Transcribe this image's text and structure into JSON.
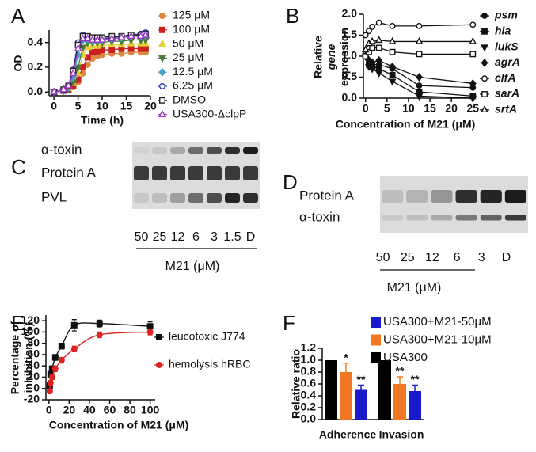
{
  "chart_data": [
    {
      "type": "line",
      "panel": "A",
      "xlabel": "Time (h)",
      "ylabel": "OD",
      "x": [
        0,
        2,
        3,
        4,
        5,
        6,
        7,
        8,
        9,
        10,
        12,
        14,
        16,
        18,
        19
      ],
      "xlim": [
        -1,
        20
      ],
      "xticks": [
        0,
        5,
        10,
        15,
        20
      ],
      "ylim": [
        -0.03,
        0.5
      ],
      "yticks": [
        {
          "value": 0,
          "label": "0.0"
        },
        {
          "value": 0.2,
          "label": "0.2"
        },
        {
          "value": 0.4,
          "label": "0.4"
        }
      ],
      "series": [
        {
          "name": "125 μM",
          "color": "#d9883f",
          "marker": "circle",
          "open": false,
          "values": [
            0,
            0.01,
            0.02,
            0.04,
            0.08,
            0.15,
            0.22,
            0.27,
            0.29,
            0.3,
            0.31,
            0.31,
            0.32,
            0.32,
            0.32
          ]
        },
        {
          "name": "100 μM",
          "color": "#cc2020",
          "marker": "square",
          "open": false,
          "values": [
            0,
            0.01,
            0.02,
            0.05,
            0.1,
            0.2,
            0.28,
            0.32,
            0.33,
            0.34,
            0.34,
            0.35,
            0.35,
            0.35,
            0.35
          ]
        },
        {
          "name": "50 μM",
          "color": "#e0cf3a",
          "marker": "triangle",
          "open": false,
          "values": [
            0,
            0.01,
            0.03,
            0.07,
            0.15,
            0.3,
            0.36,
            0.37,
            0.37,
            0.38,
            0.38,
            0.38,
            0.39,
            0.39,
            0.39
          ]
        },
        {
          "name": "25 μM",
          "color": "#4a7a3a",
          "marker": "triangle-down",
          "open": false,
          "values": [
            0,
            0.01,
            0.03,
            0.08,
            0.2,
            0.36,
            0.4,
            0.4,
            0.4,
            0.4,
            0.41,
            0.41,
            0.42,
            0.42,
            0.42
          ]
        },
        {
          "name": "12.5 μM",
          "color": "#4aa3c8",
          "marker": "diamond",
          "open": false,
          "values": [
            0,
            0.01,
            0.04,
            0.12,
            0.3,
            0.42,
            0.43,
            0.42,
            0.42,
            0.42,
            0.43,
            0.44,
            0.45,
            0.45,
            0.46
          ]
        },
        {
          "name": "6.25 μM",
          "color": "#2233bb",
          "marker": "circle",
          "open": true,
          "values": [
            0,
            0.02,
            0.05,
            0.18,
            0.4,
            0.46,
            0.45,
            0.43,
            0.43,
            0.43,
            0.44,
            0.45,
            0.46,
            0.47,
            0.48
          ]
        },
        {
          "name": "DMSO",
          "color": "#222222",
          "marker": "square",
          "open": true,
          "values": [
            0,
            0.02,
            0.05,
            0.17,
            0.38,
            0.45,
            0.45,
            0.44,
            0.44,
            0.44,
            0.45,
            0.45,
            0.46,
            0.46,
            0.47
          ]
        },
        {
          "name": "USA300-ΔclpP",
          "color": "#9933cc",
          "marker": "triangle",
          "open": true,
          "values": [
            0,
            0.02,
            0.05,
            0.15,
            0.35,
            0.43,
            0.43,
            0.42,
            0.42,
            0.42,
            0.43,
            0.44,
            0.45,
            0.45,
            0.46
          ]
        }
      ]
    },
    {
      "type": "line",
      "panel": "B",
      "xlabel": "Concentration of M21 (μM)",
      "ylabel": [
        "Relative",
        "gene",
        "expression"
      ],
      "ylabel_italic": [
        false,
        true,
        false
      ],
      "x": [
        0,
        0.78,
        1.56,
        3.125,
        6.25,
        12.5,
        25
      ],
      "xlim": [
        -0.5,
        25.5
      ],
      "xticks": [
        0,
        5,
        10,
        15,
        20,
        25
      ],
      "ylim": [
        0,
        2.0
      ],
      "yticks": [
        {
          "value": 0,
          "label": "0.0"
        },
        {
          "value": 0.5,
          "label": "0.5"
        },
        {
          "value": 1,
          "label": "1.0"
        },
        {
          "value": 1.5,
          "label": "1.5"
        },
        {
          "value": 2,
          "label": "2.0"
        }
      ],
      "series": [
        {
          "name": "psm",
          "color": "#111111",
          "marker": "circle",
          "open": false,
          "values": [
            1.0,
            0.85,
            0.8,
            0.8,
            0.7,
            0.3,
            0.25
          ]
        },
        {
          "name": "hla",
          "color": "#111111",
          "marker": "square",
          "open": false,
          "values": [
            1.0,
            0.8,
            0.75,
            0.7,
            0.55,
            0.15,
            0.05
          ]
        },
        {
          "name": "lukS",
          "color": "#111111",
          "marker": "triangle-down",
          "open": false,
          "values": [
            1.0,
            0.75,
            0.7,
            0.6,
            0.4,
            0.05,
            0.0
          ]
        },
        {
          "name": "agrA",
          "color": "#111111",
          "marker": "diamond",
          "open": false,
          "values": [
            1.0,
            0.9,
            0.85,
            0.9,
            0.75,
            0.5,
            0.35
          ]
        },
        {
          "name": "clfA",
          "color": "#111111",
          "marker": "circle",
          "open": true,
          "values": [
            1.5,
            1.6,
            1.7,
            1.8,
            1.72,
            1.72,
            1.75
          ]
        },
        {
          "name": "sarA",
          "color": "#111111",
          "marker": "square",
          "open": true,
          "values": [
            1.0,
            1.1,
            1.2,
            1.2,
            1.1,
            1.05,
            1.05
          ]
        },
        {
          "name": "srtA",
          "color": "#111111",
          "marker": "triangle",
          "open": true,
          "values": [
            1.15,
            1.3,
            1.35,
            1.38,
            1.35,
            1.35,
            1.35
          ]
        }
      ]
    },
    {
      "type": "blot",
      "panel": "C",
      "row_labels": [
        "α-toxin",
        "Protein A",
        "PVL"
      ],
      "lane_labels": [
        "50",
        "25",
        "12",
        "6",
        "3",
        "1.5",
        "D"
      ],
      "xlabel": "M21 (μM)"
    },
    {
      "type": "blot",
      "panel": "D",
      "row_labels": [
        "Protein A",
        "α-toxin"
      ],
      "lane_labels": [
        "50",
        "25",
        "12",
        "6",
        "3",
        "D"
      ],
      "xlabel": "M21 (μM)"
    },
    {
      "type": "scatter",
      "panel": "E",
      "xlabel": "Concentration of M21 (μM)",
      "ylabel": [
        "Percentage of",
        "inhibition (%)"
      ],
      "fit_line": true,
      "x": [
        0.78,
        1.56,
        3.125,
        6.25,
        12.5,
        25,
        50,
        100
      ],
      "xlim": [
        -3,
        105
      ],
      "xticks": [
        0,
        20,
        40,
        60,
        80,
        100
      ],
      "ylim": [
        -20,
        130
      ],
      "yticks": [
        -20,
        0,
        20,
        40,
        60,
        80,
        100,
        120
      ],
      "series": [
        {
          "name": "leucotoxic J774",
          "color": "#111111",
          "marker": "square",
          "open": false,
          "values": [
            5,
            25,
            35,
            55,
            75,
            112,
            115,
            110
          ],
          "errors": [
            5,
            5,
            5,
            5,
            5,
            10,
            6,
            8
          ]
        },
        {
          "name": "hemolysis hRBC",
          "color": "#dd2222",
          "marker": "circle",
          "open": false,
          "values": [
            -5,
            10,
            20,
            35,
            50,
            70,
            95,
            100
          ],
          "errors": [
            3,
            4,
            4,
            5,
            5,
            5,
            5,
            5
          ]
        }
      ]
    },
    {
      "type": "grouped_bar",
      "panel": "F",
      "ylabel": "Relative ratio",
      "categories": [
        "Adherence",
        "Invasion"
      ],
      "ylim": [
        0,
        1.2
      ],
      "yticks": [
        {
          "value": 0,
          "label": "0.0"
        },
        {
          "value": 0.2,
          "label": "0.2"
        },
        {
          "value": 0.4,
          "label": "0.4"
        },
        {
          "value": 0.6,
          "label": "0.6"
        },
        {
          "value": 0.8,
          "label": "0.8"
        },
        {
          "value": 1,
          "label": "1.0"
        },
        {
          "value": 1.2,
          "label": "1.2"
        }
      ],
      "series": [
        {
          "name": "USA300",
          "color": "#000000",
          "values": [
            1.0,
            1.0
          ]
        },
        {
          "name": "USA300+M21-10μM",
          "color": "#f07822",
          "values": [
            0.8,
            0.6
          ],
          "errors": [
            0.15,
            0.12
          ],
          "annotations": [
            "*",
            "**"
          ]
        },
        {
          "name": "USA300+M21-50μM",
          "color": "#1a1acc",
          "values": [
            0.5,
            0.48
          ],
          "errors": [
            0.08,
            0.1
          ],
          "annotations": [
            "**",
            "**"
          ]
        }
      ]
    }
  ]
}
